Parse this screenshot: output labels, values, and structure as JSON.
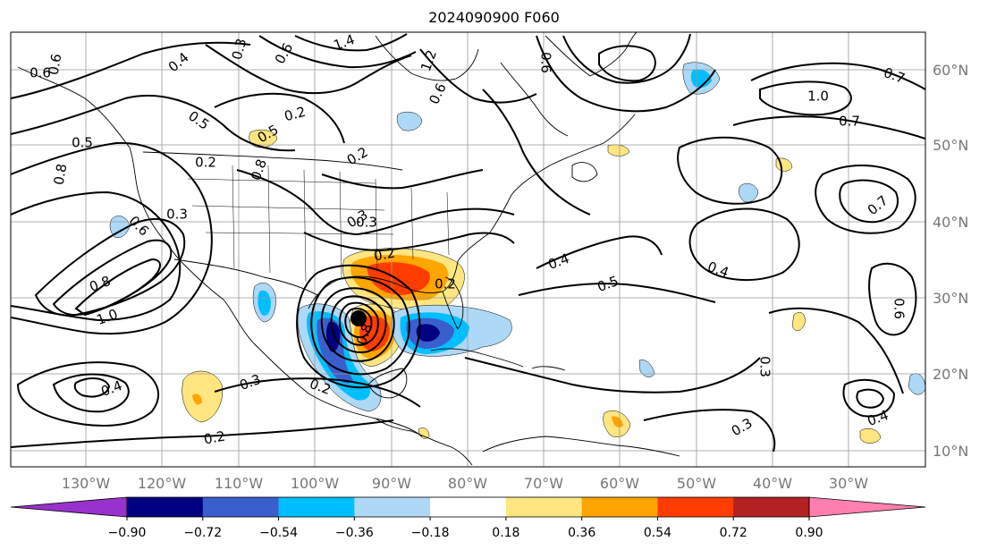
{
  "title": "2024090900 F060",
  "map": {
    "lat_labels": [
      "60°N",
      "50°N",
      "40°N",
      "30°N",
      "20°N",
      "10°N"
    ],
    "lon_labels": [
      "130°W",
      "120°W",
      "110°W",
      "100°W",
      "90°W",
      "80°W",
      "70°W",
      "60°W",
      "50°W",
      "40°W",
      "30°W"
    ],
    "contour_labels": [
      "0.6",
      "0.5",
      "0.3",
      "0.4",
      "0.2",
      "1.4",
      "0.6",
      "0.2",
      "0.5",
      "0.6",
      "0.8",
      "0.6",
      "0.7",
      "1.0",
      "0.7",
      "0.8",
      "0.3",
      "0.6",
      "0.3",
      "0.2",
      "0.8",
      "1.0",
      "0.2",
      "0.4",
      "0.5",
      "0.4",
      "0.5",
      "0.6",
      "0.4",
      "0.3",
      "0.3",
      "0.2",
      "0.2",
      "0.6",
      "0.3",
      "0.2",
      "0.4",
      "0.8",
      "1.2",
      "0.7",
      "0.3"
    ],
    "storm_marker": "storm-center"
  },
  "colorbar": {
    "ticks": [
      "−0.90",
      "−0.72",
      "−0.54",
      "−0.36",
      "−0.18",
      "0.18",
      "0.36",
      "0.54",
      "0.72",
      "0.90"
    ],
    "colors": [
      "#9932cc",
      "#000080",
      "#3a5fcd",
      "#00bfff",
      "#add8f6",
      "#ffffff",
      "#ffe680",
      "#ffa500",
      "#ff3c00",
      "#b22222",
      "#ff80b0"
    ]
  }
}
